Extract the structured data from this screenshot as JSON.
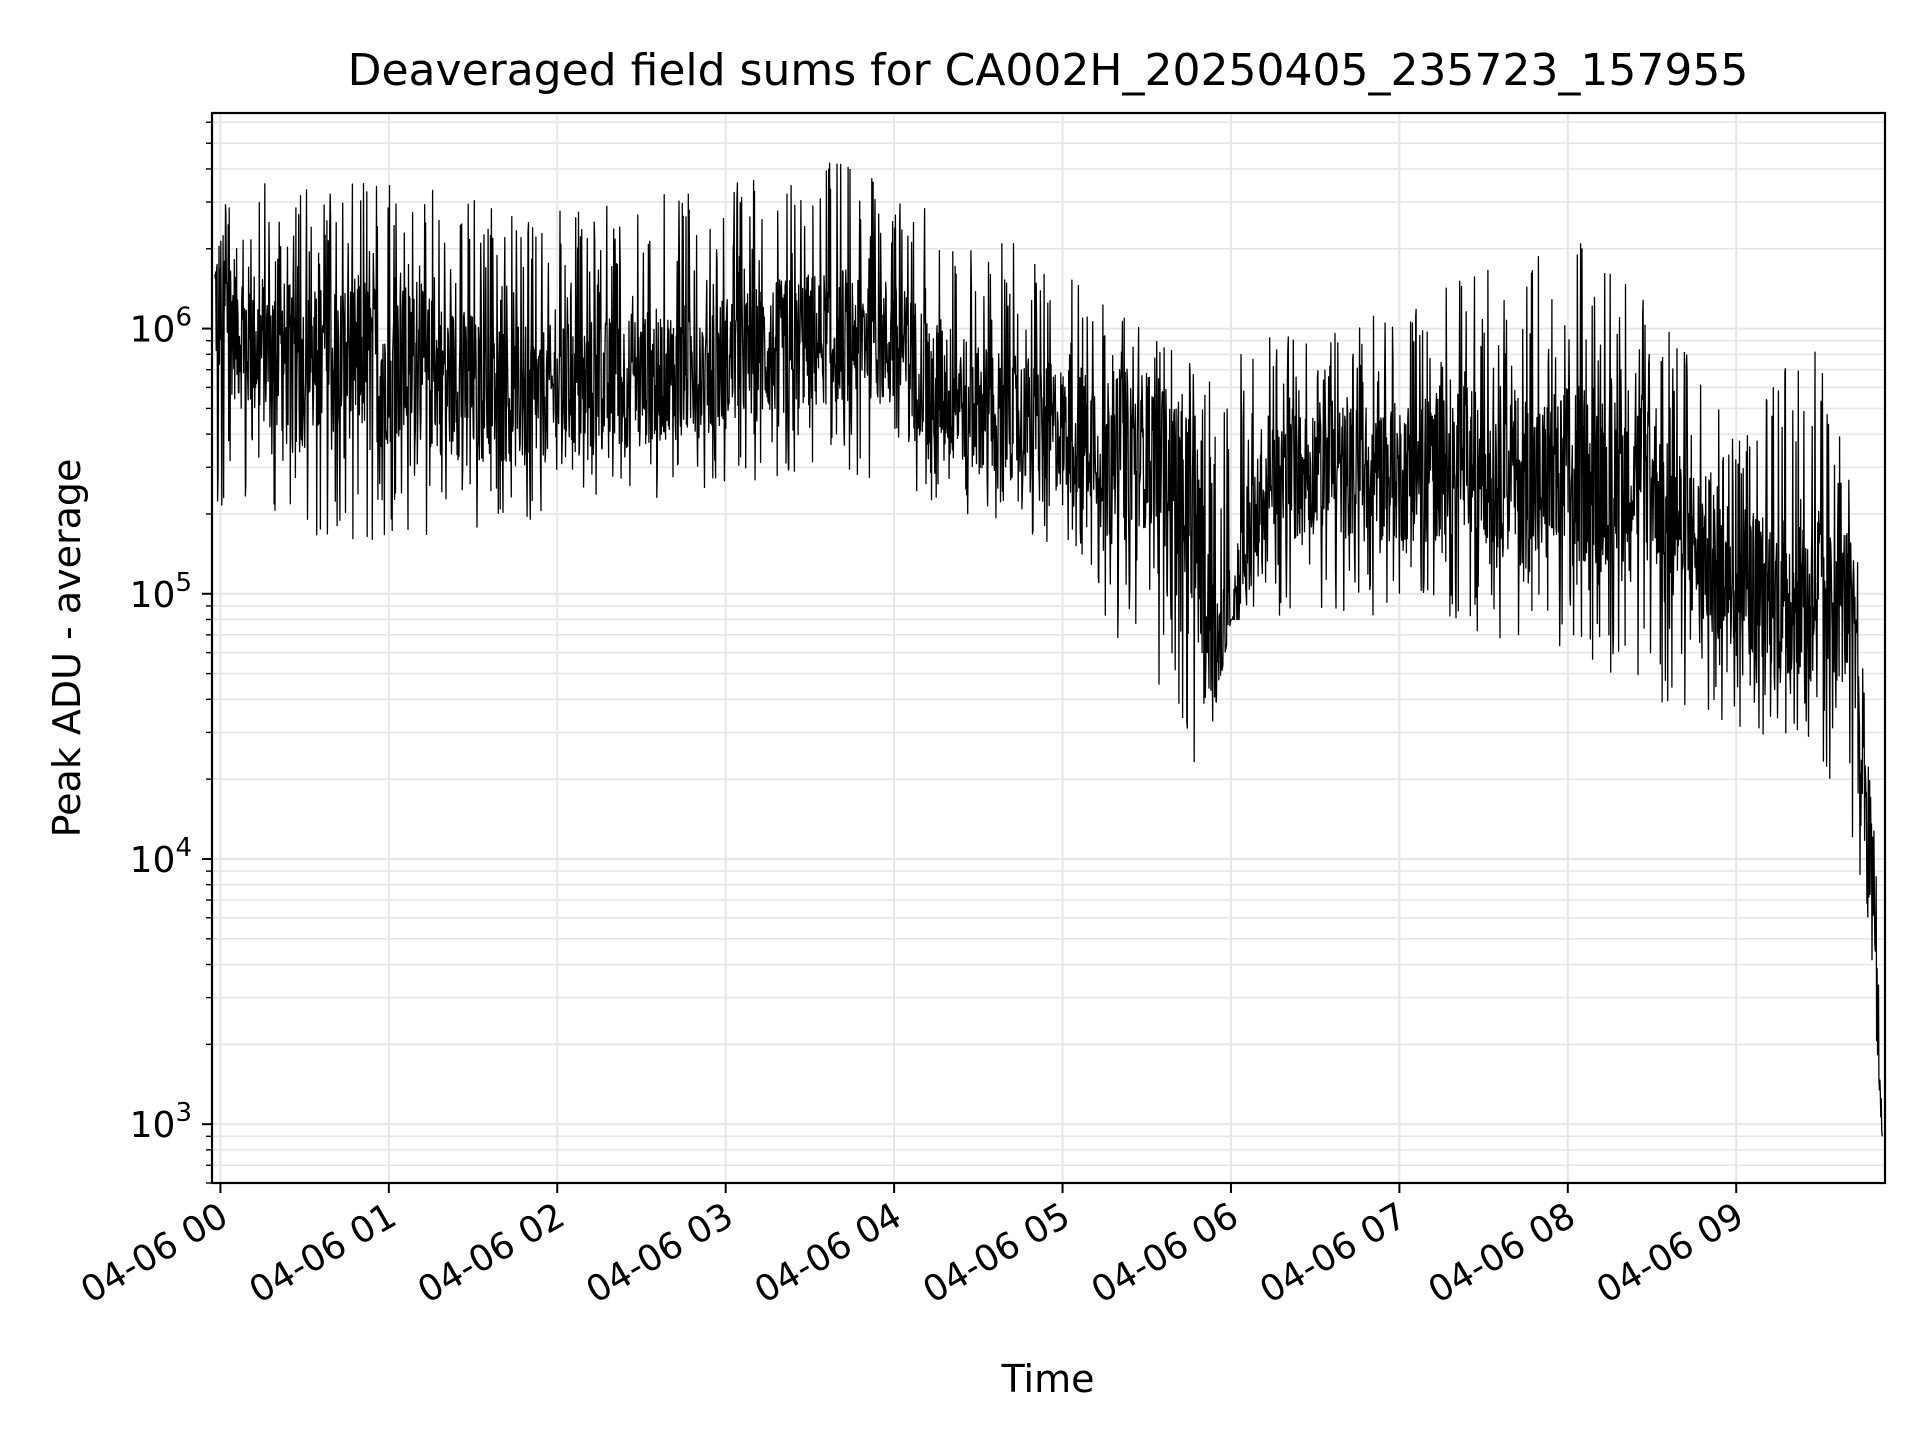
{
  "chart_data": {
    "type": "line",
    "title": "Deaveraged field sums for CA002H_20250405_235723_157955",
    "xlabel": "Time",
    "ylabel": "Peak ADU - average",
    "y_scale": "log",
    "ylim": [
      600,
      6500000
    ],
    "xlim": [
      "2025-04-05T23:57:00",
      "2025-04-06T09:53:00"
    ],
    "x_ticks": [
      {
        "at": "2025-04-06T00:00",
        "label": "04-06 00"
      },
      {
        "at": "2025-04-06T01:00",
        "label": "04-06 01"
      },
      {
        "at": "2025-04-06T02:00",
        "label": "04-06 02"
      },
      {
        "at": "2025-04-06T03:00",
        "label": "04-06 03"
      },
      {
        "at": "2025-04-06T04:00",
        "label": "04-06 04"
      },
      {
        "at": "2025-04-06T05:00",
        "label": "04-06 05"
      },
      {
        "at": "2025-04-06T06:00",
        "label": "04-06 06"
      },
      {
        "at": "2025-04-06T07:00",
        "label": "04-06 07"
      },
      {
        "at": "2025-04-06T08:00",
        "label": "04-06 08"
      },
      {
        "at": "2025-04-06T09:00",
        "label": "04-06 09"
      }
    ],
    "y_ticks": [
      {
        "value": 1000,
        "base": "10",
        "exp": "3"
      },
      {
        "value": 10000,
        "base": "10",
        "exp": "4"
      },
      {
        "value": 100000,
        "base": "10",
        "exp": "5"
      },
      {
        "value": 1000000,
        "base": "10",
        "exp": "6"
      }
    ],
    "grid": true,
    "legend": "none",
    "line_color": "#000000",
    "grid_color": "#e6e6e6",
    "series": [
      {
        "x": [
          "2025-04-05T23:58",
          "2025-04-06T00:10",
          "2025-04-06T00:30",
          "2025-04-06T00:50",
          "2025-04-06T01:10",
          "2025-04-06T01:30",
          "2025-04-06T01:50",
          "2025-04-06T02:10",
          "2025-04-06T02:30",
          "2025-04-06T02:50",
          "2025-04-06T03:10",
          "2025-04-06T03:30",
          "2025-04-06T03:50",
          "2025-04-06T04:10",
          "2025-04-06T04:30",
          "2025-04-06T04:50",
          "2025-04-06T05:10",
          "2025-04-06T05:30",
          "2025-04-06T05:45",
          "2025-04-06T05:52",
          "2025-04-06T05:58",
          "2025-04-06T06:05",
          "2025-04-06T06:15",
          "2025-04-06T06:30",
          "2025-04-06T06:50",
          "2025-04-06T07:10",
          "2025-04-06T07:30",
          "2025-04-06T07:50",
          "2025-04-06T08:10",
          "2025-04-06T08:30",
          "2025-04-06T08:45",
          "2025-04-06T09:00",
          "2025-04-06T09:15",
          "2025-04-06T09:30",
          "2025-04-06T09:40",
          "2025-04-06T09:45",
          "2025-04-06T09:48",
          "2025-04-06T09:50",
          "2025-04-06T09:52"
        ],
        "y": [
          1300000,
          900000,
          700000,
          800000,
          700000,
          600000,
          550000,
          600000,
          650000,
          700000,
          800000,
          900000,
          1000000,
          700000,
          500000,
          450000,
          400000,
          350000,
          250000,
          70000,
          60000,
          150000,
          250000,
          300000,
          280000,
          300000,
          320000,
          250000,
          300000,
          280000,
          150000,
          120000,
          100000,
          110000,
          90000,
          30000,
          10000,
          5000,
          900
        ]
      }
    ],
    "noise_envelope": {
      "x": [
        "2025-04-05T23:58",
        "2025-04-06T01:00",
        "2025-04-06T02:00",
        "2025-04-06T03:00",
        "2025-04-06T03:40",
        "2025-04-06T04:00",
        "2025-04-06T05:00",
        "2025-04-06T05:50",
        "2025-04-06T06:00",
        "2025-04-06T07:00",
        "2025-04-06T08:00",
        "2025-04-06T08:30",
        "2025-04-06T09:00",
        "2025-04-06T09:30",
        "2025-04-06T09:45",
        "2025-04-06T09:52"
      ],
      "y_min": [
        180000,
        150000,
        200000,
        250000,
        300000,
        250000,
        150000,
        20000,
        80000,
        80000,
        60000,
        40000,
        30000,
        25000,
        8000,
        900
      ],
      "y_max": [
        3500000,
        3800000,
        2800000,
        3500000,
        4300000,
        3500000,
        1700000,
        700000,
        900000,
        1200000,
        2300000,
        1300000,
        500000,
        950000,
        150000,
        3000
      ]
    }
  }
}
